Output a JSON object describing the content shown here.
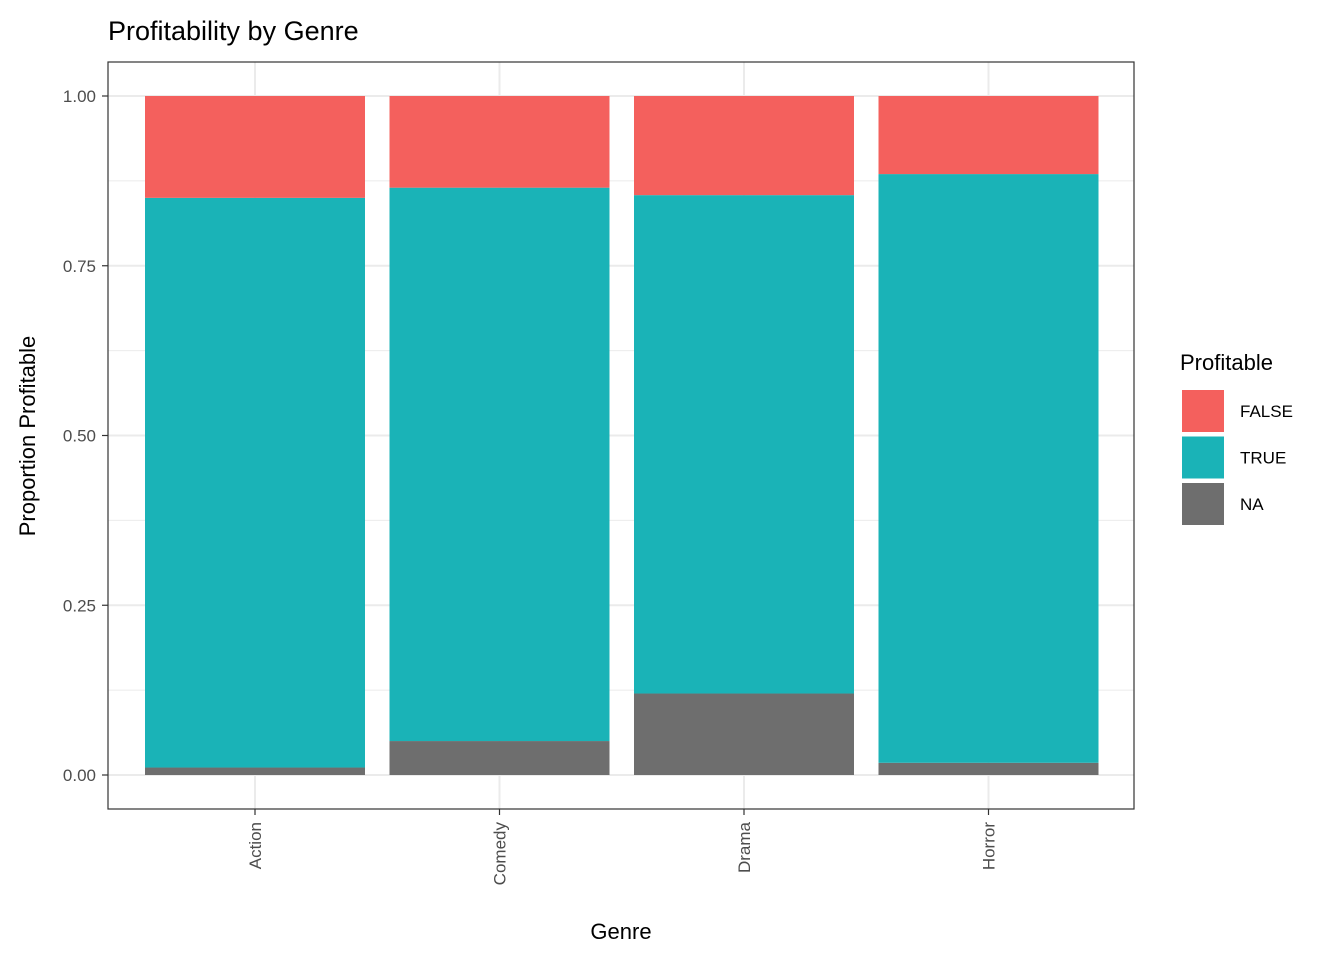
{
  "chart_data": {
    "type": "bar",
    "stacked": true,
    "title": "Profitability by Genre",
    "xlabel": "Genre",
    "ylabel": "Proportion Profitable",
    "categories": [
      "Action",
      "Comedy",
      "Drama",
      "Horror"
    ],
    "ylim": [
      0,
      1
    ],
    "yticks": [
      0,
      0.25,
      0.5,
      0.75,
      1
    ],
    "ytick_labels": [
      "0.00",
      "0.25",
      "0.50",
      "0.75",
      "1.00"
    ],
    "grid": true,
    "legend": {
      "title": "Profitable",
      "position": "right"
    },
    "series": [
      {
        "name": "NA",
        "color": "#6e6e6e",
        "values": [
          0.011,
          0.05,
          0.12,
          0.018
        ]
      },
      {
        "name": "TRUE",
        "color": "#1ab3b7",
        "values": [
          0.839,
          0.815,
          0.734,
          0.867
        ]
      },
      {
        "name": "FALSE",
        "color": "#f4605d",
        "values": [
          0.15,
          0.135,
          0.146,
          0.115
        ]
      }
    ],
    "legend_order": [
      "FALSE",
      "TRUE",
      "NA"
    ]
  }
}
